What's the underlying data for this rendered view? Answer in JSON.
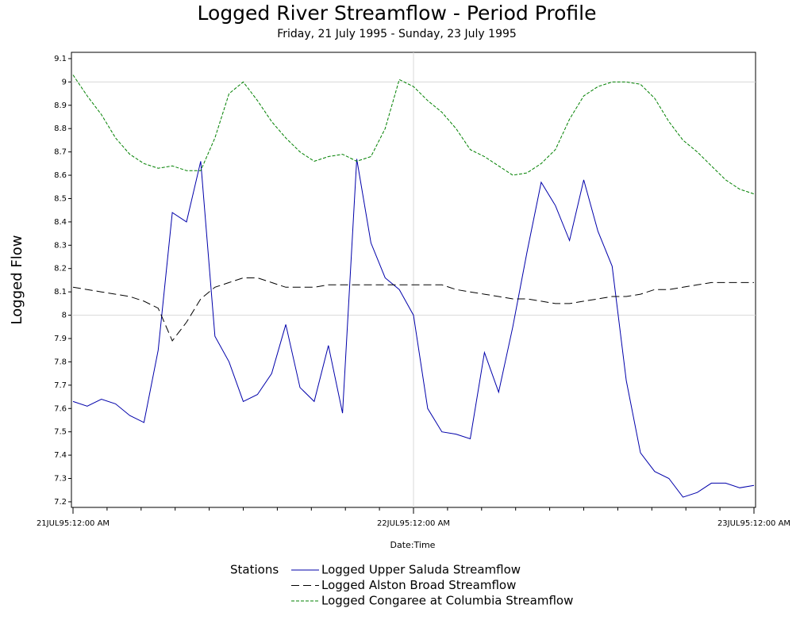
{
  "chart_data": {
    "type": "line",
    "title": "Logged River Streamflow - Period Profile",
    "subtitle": "Friday, 21 July 1995 - Sunday, 23 July 1995",
    "x_label": "Date:Time",
    "y_label": "Logged Flow",
    "legend_title": "Stations",
    "categories": [
      "21JUL95:12:00 AM",
      null,
      null,
      null,
      null,
      null,
      null,
      null,
      null,
      null,
      null,
      null,
      null,
      null,
      null,
      null,
      null,
      null,
      null,
      null,
      null,
      null,
      null,
      null,
      "22JUL95:12:00 AM",
      null,
      null,
      null,
      null,
      null,
      null,
      null,
      null,
      null,
      null,
      null,
      null,
      null,
      null,
      null,
      null,
      null,
      null,
      null,
      null,
      null,
      null,
      null,
      "23JUL95:12:00 AM"
    ],
    "ylim": [
      7.176,
      9.127
    ],
    "yticks": [
      7.2,
      7.3,
      7.4,
      7.5,
      7.6,
      7.7,
      7.8,
      7.9,
      8,
      8.1,
      8.2,
      8.3,
      8.4,
      8.5,
      8.6,
      8.7,
      8.8,
      8.9,
      9,
      9.1
    ],
    "ygrid": [
      8,
      9
    ],
    "series": [
      {
        "name": "Logged Upper Saluda Streamflow",
        "color": "#0000aa",
        "dash": "none",
        "values": [
          7.63,
          7.61,
          7.64,
          7.62,
          7.57,
          7.54,
          7.85,
          8.44,
          8.4,
          8.66,
          7.91,
          7.8,
          7.63,
          7.66,
          7.75,
          7.96,
          7.69,
          7.63,
          7.87,
          7.58,
          8.67,
          8.31,
          8.16,
          8.11,
          8.0,
          7.6,
          7.5,
          7.49,
          7.47,
          7.84,
          7.67,
          7.95,
          8.27,
          8.57,
          8.47,
          8.32,
          8.58,
          8.36,
          8.21,
          7.72,
          7.41,
          7.33,
          7.3,
          7.22,
          7.24,
          7.28,
          7.28,
          7.26,
          7.27
        ]
      },
      {
        "name": "Logged Alston Broad Streamflow",
        "color": "#000000",
        "dash": "10,5",
        "values": [
          8.12,
          8.11,
          8.1,
          8.09,
          8.08,
          8.06,
          8.03,
          7.89,
          7.97,
          8.07,
          8.12,
          8.14,
          8.16,
          8.16,
          8.14,
          8.12,
          8.12,
          8.12,
          8.13,
          8.13,
          8.13,
          8.13,
          8.13,
          8.13,
          8.13,
          8.13,
          8.13,
          8.11,
          8.1,
          8.09,
          8.08,
          8.07,
          8.07,
          8.06,
          8.05,
          8.05,
          8.06,
          8.07,
          8.08,
          8.08,
          8.09,
          8.11,
          8.11,
          8.12,
          8.13,
          8.14,
          8.14,
          8.14,
          8.14
        ]
      },
      {
        "name": "Logged Congaree at Columbia Streamflow",
        "color": "#008000",
        "dash": "4,2",
        "values": [
          9.03,
          8.94,
          8.86,
          8.76,
          8.69,
          8.65,
          8.63,
          8.64,
          8.62,
          8.62,
          8.76,
          8.95,
          9.0,
          8.92,
          8.83,
          8.76,
          8.7,
          8.66,
          8.68,
          8.69,
          8.66,
          8.68,
          8.8,
          9.01,
          8.98,
          8.92,
          8.87,
          8.8,
          8.71,
          8.68,
          8.64,
          8.6,
          8.61,
          8.65,
          8.71,
          8.84,
          8.94,
          8.98,
          9.0,
          9.0,
          8.99,
          8.93,
          8.83,
          8.75,
          8.7,
          8.64,
          8.58,
          8.54,
          8.52
        ]
      }
    ]
  }
}
